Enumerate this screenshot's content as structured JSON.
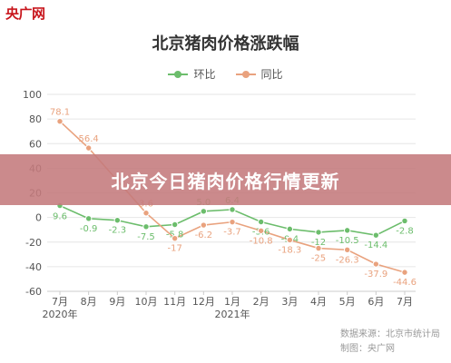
{
  "logo": "央广网",
  "banner": "北京今日猪肉价格行情更新",
  "source": {
    "line1": "数据来源：北京市统计局",
    "line2": "制图：央广网"
  },
  "colors": {
    "mom": "#6cbd6c",
    "yoy": "#e9a27e",
    "grid": "#e6e6e6",
    "axis_text": "#555555"
  },
  "chart_data": {
    "type": "line",
    "title": "北京猪肉价格涨跌幅",
    "categories": [
      "7月",
      "8月",
      "9月",
      "10月",
      "11月",
      "12月",
      "1月",
      "2月",
      "3月",
      "4月",
      "5月",
      "6月",
      "7月"
    ],
    "year_labels": [
      {
        "label": "2020年",
        "index": 0
      },
      {
        "label": "2021年",
        "index": 6
      }
    ],
    "ylim": [
      -60,
      100
    ],
    "yticks": [
      -60,
      -40,
      -20,
      0,
      20,
      40,
      60,
      80,
      100
    ],
    "grid": true,
    "legend_position": "top-center",
    "series": [
      {
        "name": "环比",
        "color": "#6cbd6c",
        "values": [
          9.6,
          -0.9,
          -2.3,
          -7.5,
          -5.8,
          5.0,
          6.4,
          -3.6,
          -9.4,
          -12,
          -10.5,
          -14.4,
          -2.8
        ],
        "labels": [
          "9.6",
          "-0.9",
          "-2.3",
          "-7.5",
          "-5.8",
          "5.0",
          "6.4",
          "-3.6",
          "-9.4",
          "-12",
          "-10.5",
          "-14.4",
          "-2.8"
        ]
      },
      {
        "name": "同比",
        "color": "#e9a27e",
        "values": [
          78.1,
          56.4,
          30,
          3.6,
          -17,
          -6.2,
          -3.7,
          -10.8,
          -18.3,
          -25,
          -26.3,
          -37.9,
          -44.6
        ],
        "labels": [
          "78.1",
          "56.4",
          "",
          "3.6",
          "-17",
          "-6.2",
          "-3.7",
          "-10.8",
          "-18.3",
          "-25",
          "-26.3",
          "-37.9",
          "-44.6"
        ]
      }
    ]
  }
}
